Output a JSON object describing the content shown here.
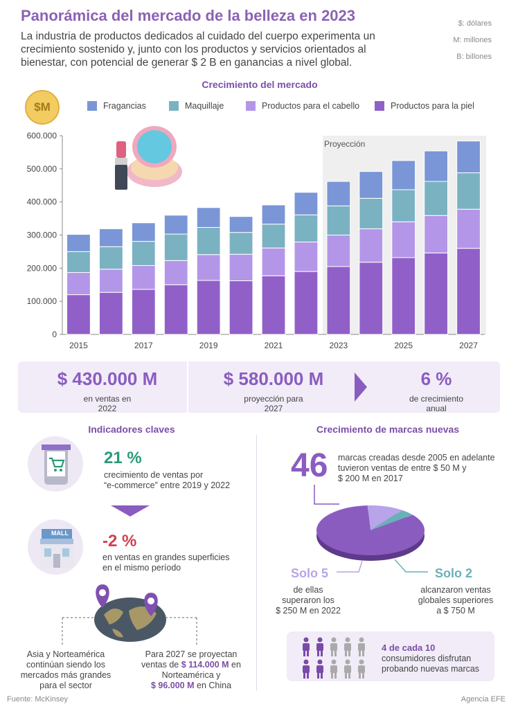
{
  "header": {
    "title": "Panorámica del mercado de la belleza en 2023",
    "intro": "La industria de productos dedicados al cuidado del cuerpo experimenta un crecimiento sostenido y, junto con los productos y servicios orientados al bienestar, con potencial de generar $ 2 B en ganancias a nivel global.",
    "units": [
      "$: dólares",
      "M: millones",
      "B: billones"
    ]
  },
  "chart_section": {
    "title": "Crecimiento del mercado",
    "dollar_badge": "$M",
    "projection_label": "Proyección"
  },
  "chart_data": {
    "type": "bar",
    "stacked": true,
    "categories": [
      "2015",
      "2016",
      "2017",
      "2018",
      "2019",
      "2020",
      "2021",
      "2022",
      "2023",
      "2024",
      "2025",
      "2026",
      "2027"
    ],
    "series": [
      {
        "name": "Productos para la piel",
        "color": "#9060c8",
        "values": [
          120000,
          127000,
          136000,
          150000,
          163000,
          162000,
          177000,
          190000,
          205000,
          218000,
          232000,
          246000,
          260000
        ]
      },
      {
        "name": "Productos para el cabello",
        "color": "#b496e8",
        "values": [
          67000,
          70000,
          72000,
          73000,
          78000,
          80000,
          84000,
          89000,
          95000,
          101000,
          108000,
          113000,
          118000
        ]
      },
      {
        "name": "Maquillaje",
        "color": "#7ab2c2",
        "values": [
          63000,
          68000,
          73000,
          80000,
          82000,
          66000,
          72000,
          82000,
          88000,
          92000,
          97000,
          103000,
          110000
        ]
      },
      {
        "name": "Fragancias",
        "color": "#7a96d6",
        "values": [
          52000,
          54000,
          56000,
          57000,
          60000,
          48000,
          58000,
          68000,
          74000,
          81000,
          88000,
          92000,
          96000
        ]
      }
    ],
    "ylim": [
      0,
      600000
    ],
    "yticks": [
      "0",
      "100.000",
      "200.000",
      "300.000",
      "400.000",
      "500.000",
      "600.000"
    ],
    "xtick_labels": [
      "2015",
      "2017",
      "2019",
      "2021",
      "2023",
      "2025",
      "2027"
    ],
    "projection_from": "2023",
    "legend_order": [
      "Fragancias",
      "Maquillaje",
      "Productos para el cabello",
      "Productos para la piel"
    ]
  },
  "kpis": [
    {
      "value": "$ 430.000 M",
      "label_line1": "en ventas en",
      "label_line2": "2022"
    },
    {
      "value": "$ 580.000 M",
      "label_line1": "proyección para",
      "label_line2": "2027"
    },
    {
      "value": "6 %",
      "label_line1": "de crecimiento",
      "label_line2": "anual"
    }
  ],
  "indicators": {
    "title": "Indicadores claves",
    "ecommerce_pct": "21 %",
    "ecommerce_line1": "crecimiento de ventas por",
    "ecommerce_line2": "“e-commerce” entre 2019 y 2022",
    "mall_label": "MALL",
    "mall_pct": "-2 %",
    "mall_line1": "en ventas en grandes superficies",
    "mall_line2": "en el mismo período",
    "left_lines": [
      "Asia y Norteamérica",
      "continúan siendo los",
      "mercados más grandes",
      "para el sector"
    ],
    "right_line1": "Para 2027 se proyectan",
    "right_line2a": "ventas de ",
    "right_line2b": "$ 114.000 M",
    "right_line2c": " en",
    "right_line3": "Norteamérica y",
    "right_line4a": "$ 96.000 M",
    "right_line4b": " en China"
  },
  "brands": {
    "title": "Crecimiento de marcas nuevas",
    "count": "46",
    "count_lines": [
      "marcas creadas desde 2005 en adelante",
      "tuvieron ventas de entre $ 50 M y",
      "$ 200 M en 2017"
    ],
    "solo5": "Solo 5",
    "solo5_lines": [
      "de ellas",
      "superaron los",
      "$ 250 M en 2022"
    ],
    "solo2": "Solo 2",
    "solo2_lines": [
      "alcanzaron ventas",
      "globales superiores",
      "a $ 750 M"
    ],
    "pie": {
      "total": 46,
      "slices": [
        {
          "name": "otras",
          "value": 39,
          "color": "#8a5cc0"
        },
        {
          "name": "Solo 5",
          "value": 5,
          "color": "#b8a4e8"
        },
        {
          "name": "Solo 2",
          "value": 2,
          "color": "#6ab0b8"
        }
      ]
    },
    "consumers_headline": "4 de cada 10",
    "consumers_lines": [
      "consumidores disfrutan",
      "probando nuevas marcas"
    ],
    "consumers_ratio": 0.4,
    "consumer_colors": {
      "active": "#7a4aa8",
      "inactive": "#aaaaaa"
    }
  },
  "footer": {
    "source": "Fuente: McKinsey",
    "agency": "Agencia EFE"
  }
}
